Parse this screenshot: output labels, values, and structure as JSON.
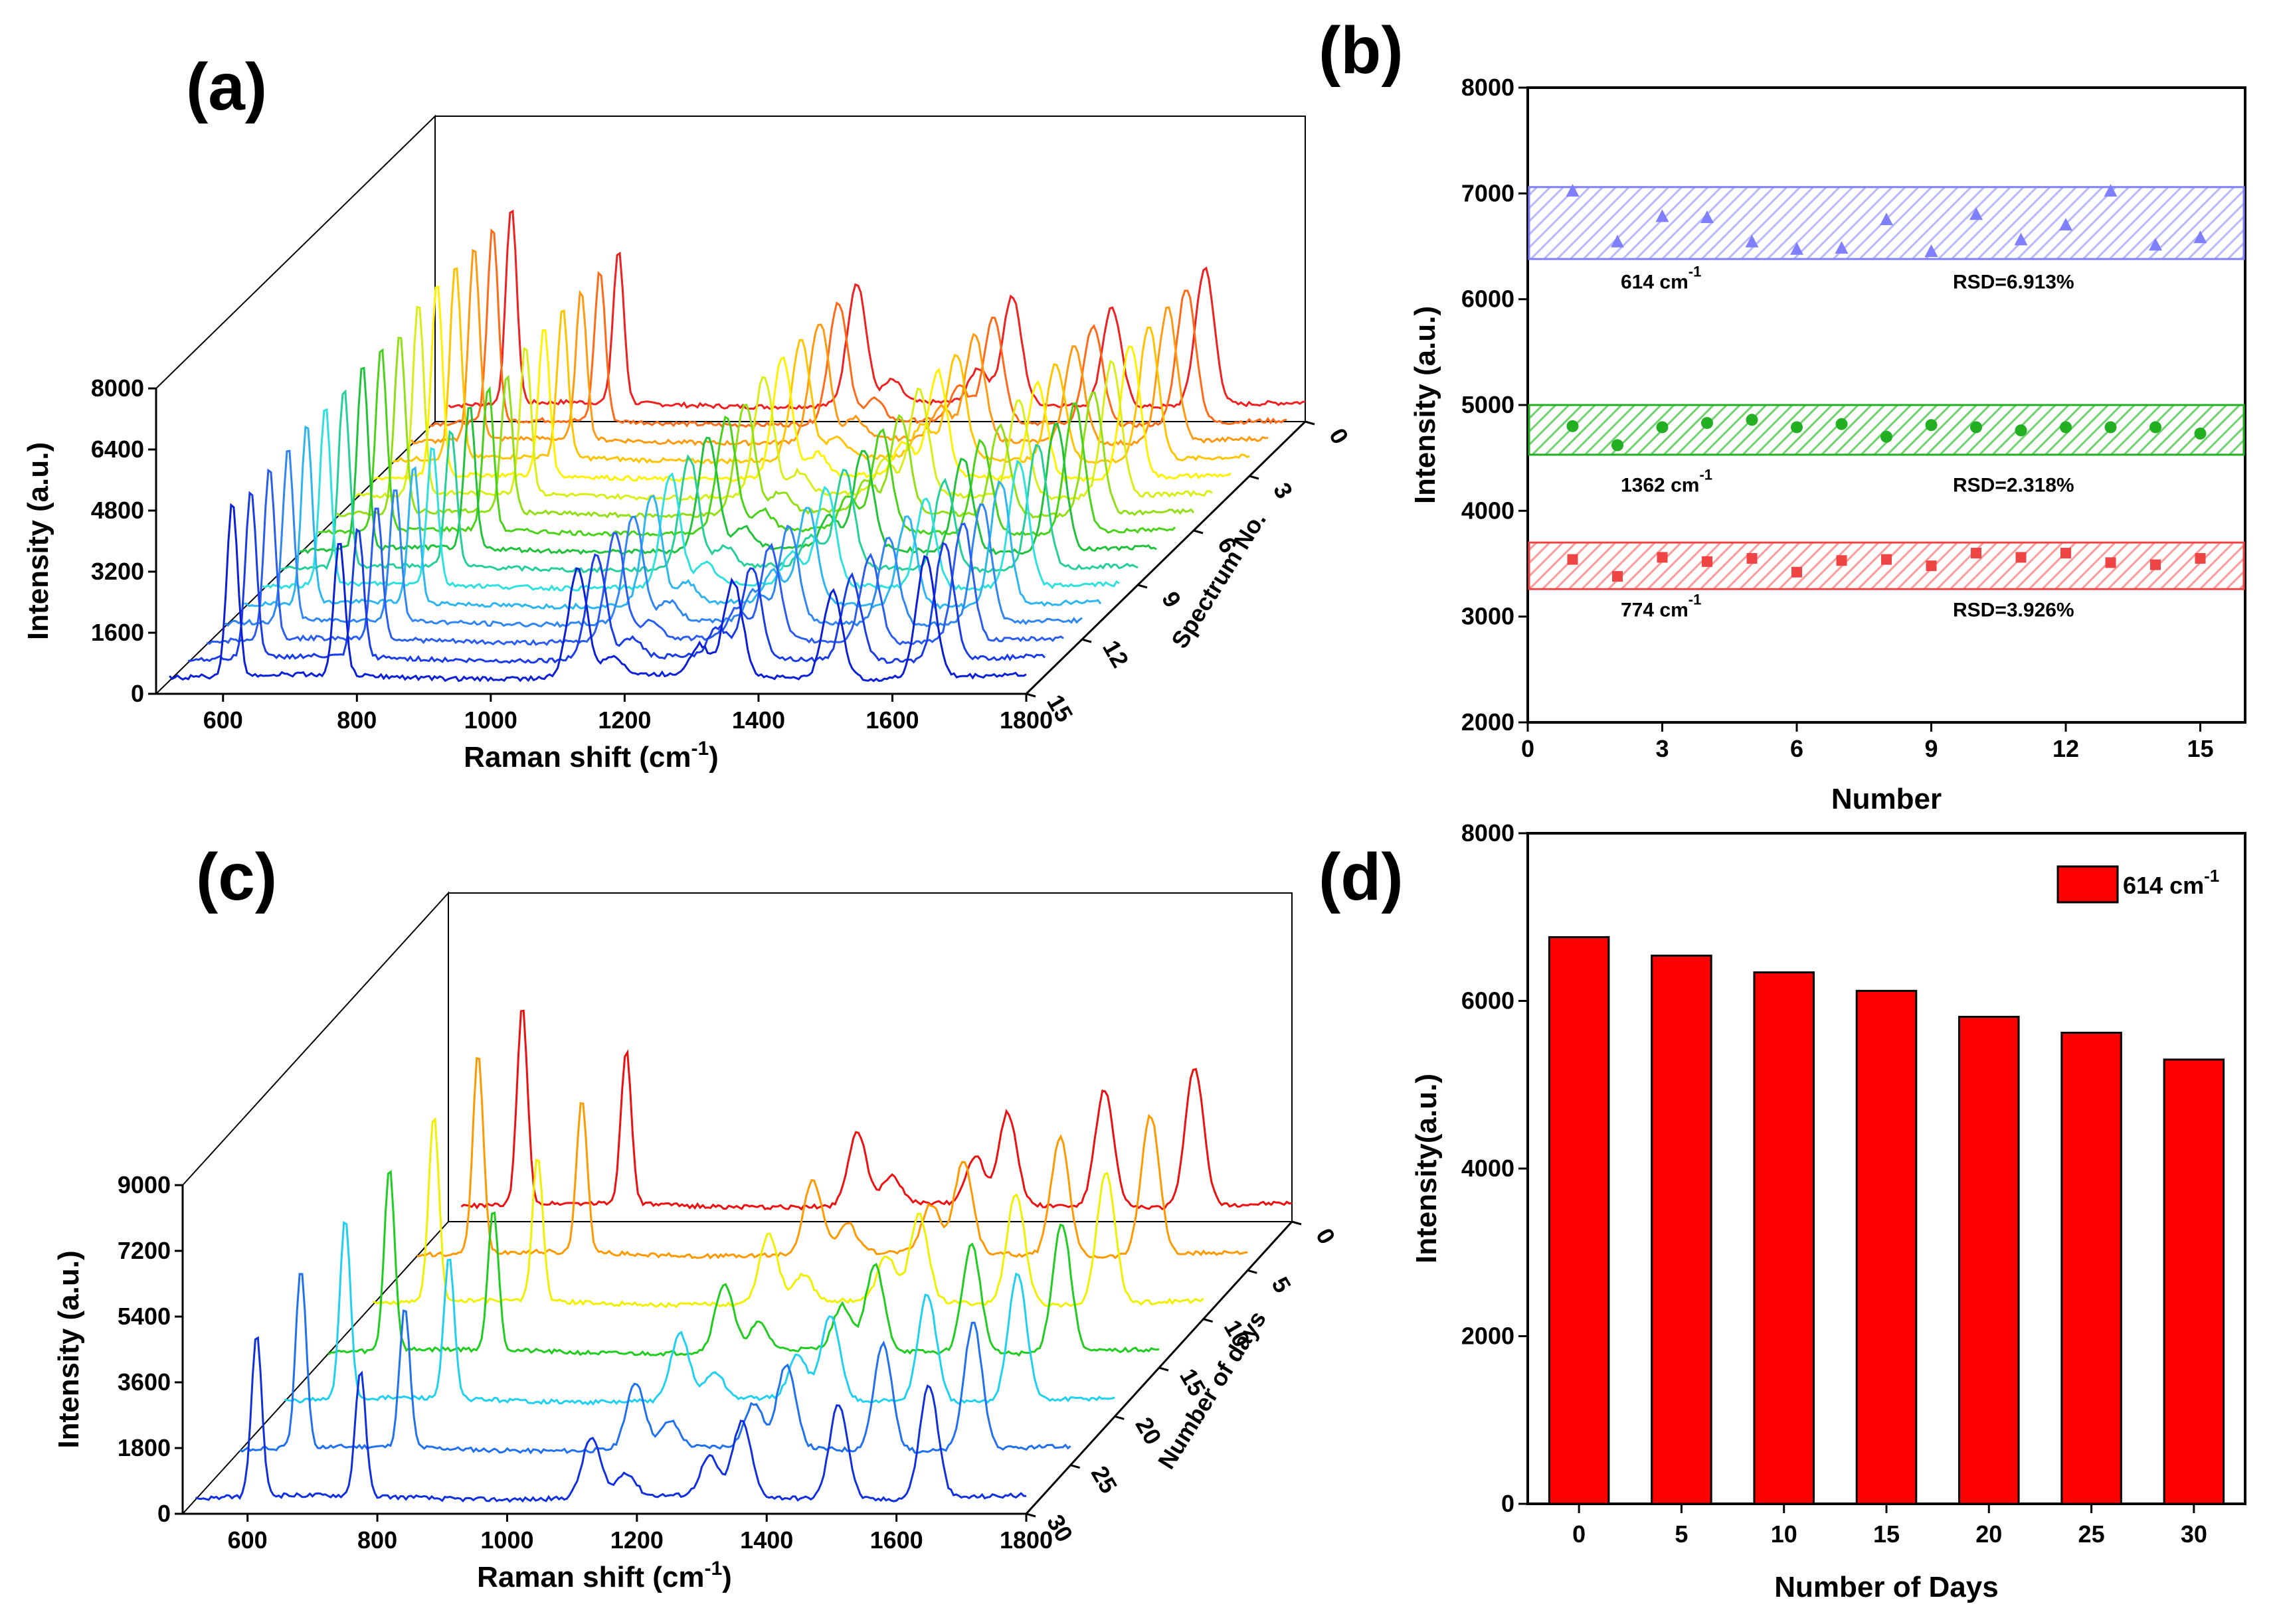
{
  "panels": {
    "a": {
      "label": "(a)"
    },
    "b": {
      "label": "(b)"
    },
    "c": {
      "label": "(c)"
    },
    "d": {
      "label": "(d)"
    }
  },
  "chart_data": [
    {
      "id": "a",
      "type": "line",
      "title": "",
      "xlabel": "Raman shift (cm-1)",
      "xlabel_main": "Raman shift (cm",
      "xlabel_sup": "-1",
      "xlabel_close": ")",
      "ylabel": "Intensity (a.u.)",
      "zlabel": "Spectrum No.",
      "xlim": [
        500,
        1800
      ],
      "ylim": [
        0,
        8000
      ],
      "x_ticks": [
        600,
        800,
        1000,
        1200,
        1400,
        1600,
        1800
      ],
      "y_ticks": [
        0,
        1600,
        3200,
        4800,
        6400,
        8000
      ],
      "z_ticks": [
        0,
        3,
        6,
        9,
        12,
        15
      ],
      "series_count": 16,
      "peaks_cm": [
        614,
        774,
        1130,
        1183,
        1312,
        1362,
        1511,
        1650
      ],
      "peak_intensity": [
        5200,
        4000,
        3200,
        600,
        900,
        2800,
        2600,
        3600
      ],
      "colors": [
        "#0b1fd6",
        "#1a3ce6",
        "#2a5cf0",
        "#2f86f2",
        "#2db5f0",
        "#2fe0e0",
        "#25cf9a",
        "#1fc23a",
        "#4ad21a",
        "#92df16",
        "#d8ee16",
        "#fff200",
        "#ffc400",
        "#ff9a10",
        "#ff6a18",
        "#f02020"
      ]
    },
    {
      "id": "b",
      "type": "scatter",
      "xlabel": "Number",
      "ylabel": "Intensity (a.u.)",
      "xlim": [
        0,
        16
      ],
      "ylim": [
        2000,
        8000
      ],
      "x_ticks": [
        0,
        3,
        6,
        9,
        12,
        15
      ],
      "y_ticks": [
        2000,
        3000,
        4000,
        5000,
        6000,
        7000,
        8000
      ],
      "x": [
        1,
        2,
        3,
        4,
        5,
        6,
        7,
        8,
        9,
        10,
        11,
        12,
        13,
        14,
        15
      ],
      "series": [
        {
          "name": "614 cm-1",
          "label_main": "614 cm",
          "label_sup": "-1",
          "rsd": "RSD=6.913%",
          "marker": "triangle",
          "color": "#8080ff",
          "band_fill": "#b8b8ff",
          "band": [
            6380,
            7060
          ],
          "values": [
            7020,
            6540,
            6780,
            6770,
            6540,
            6470,
            6480,
            6750,
            6450,
            6800,
            6560,
            6700,
            7020,
            6510,
            6580
          ]
        },
        {
          "name": "1362 cm-1",
          "label_main": "1362 cm",
          "label_sup": "-1",
          "rsd": "RSD=2.318%",
          "marker": "circle",
          "color": "#22b022",
          "band_fill": "#6ed36e",
          "band": [
            4530,
            5000
          ],
          "values": [
            4800,
            4620,
            4790,
            4830,
            4860,
            4790,
            4820,
            4700,
            4810,
            4790,
            4760,
            4790,
            4790,
            4790,
            4730
          ]
        },
        {
          "name": "774 cm-1",
          "label_main": "774 cm",
          "label_sup": "-1",
          "rsd": "RSD=3.926%",
          "marker": "square",
          "color": "#ee4444",
          "band_fill": "#ff9a9a",
          "band": [
            3260,
            3700
          ],
          "values": [
            3540,
            3380,
            3560,
            3520,
            3550,
            3420,
            3530,
            3540,
            3480,
            3600,
            3560,
            3600,
            3510,
            3490,
            3550
          ]
        }
      ]
    },
    {
      "id": "c",
      "type": "line",
      "xlabel": "Raman shift (cm-1)",
      "xlabel_main": "Raman shift (cm",
      "xlabel_sup": "-1",
      "xlabel_close": ")",
      "ylabel": "Intensity (a.u.)",
      "zlabel": "Number of days",
      "xlim": [
        500,
        1800
      ],
      "ylim": [
        0,
        9000
      ],
      "x_ticks": [
        600,
        800,
        1000,
        1200,
        1400,
        1600,
        1800
      ],
      "y_ticks": [
        0,
        1800,
        3600,
        5400,
        7200,
        9000
      ],
      "z_ticks": [
        0,
        5,
        10,
        15,
        20,
        25,
        30
      ],
      "series_count": 7,
      "peaks_cm": [
        614,
        774,
        1130,
        1183,
        1312,
        1362,
        1511,
        1650
      ],
      "peak_intensity": [
        5400,
        4200,
        2000,
        800,
        1300,
        2500,
        3200,
        3800
      ],
      "colors": [
        "#1030e0",
        "#2070f0",
        "#20d0f0",
        "#20cc20",
        "#f0f000",
        "#ff9900",
        "#ee1010"
      ]
    },
    {
      "id": "d",
      "type": "bar",
      "xlabel": "Number of Days",
      "ylabel": "Intensity(a.u.)",
      "categories": [
        "0",
        "5",
        "10",
        "15",
        "20",
        "25",
        "30"
      ],
      "values": [
        6760,
        6540,
        6340,
        6120,
        5810,
        5620,
        5300
      ],
      "ylim": [
        0,
        8000
      ],
      "y_ticks": [
        0,
        2000,
        4000,
        6000,
        8000
      ],
      "color": "#ff0000",
      "legend": {
        "label_main": "614 cm",
        "label_sup": "-1",
        "position": "top-right"
      }
    }
  ]
}
